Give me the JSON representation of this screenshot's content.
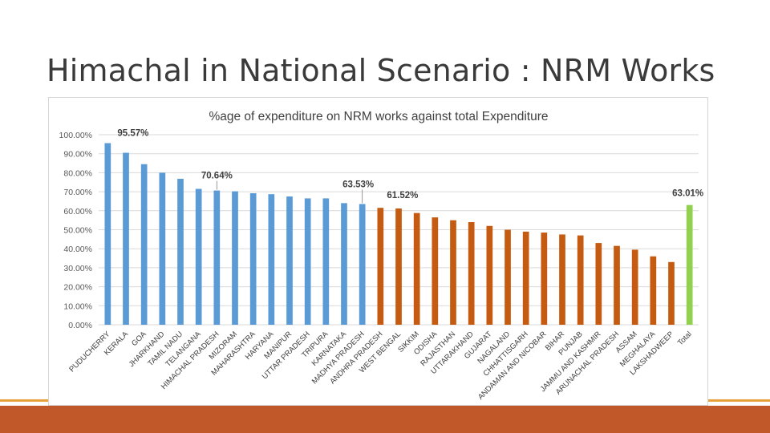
{
  "slide": {
    "title": "Himachal in National Scenario : NRM Works"
  },
  "colors": {
    "series_blue": "#5b9bd5",
    "series_orange": "#c55a11",
    "series_green": "#92d050",
    "accent_bar": "#c0582a",
    "accent_line": "#e9a23b"
  },
  "chart_data": {
    "type": "bar",
    "title": "%age of expenditure on NRM works against total Expenditure",
    "xlabel": "",
    "ylabel": "",
    "ylim": [
      0,
      100
    ],
    "yticks": [
      "0.00%",
      "10.00%",
      "20.00%",
      "30.00%",
      "40.00%",
      "50.00%",
      "60.00%",
      "70.00%",
      "80.00%",
      "90.00%",
      "100.00%"
    ],
    "grid": true,
    "legend": "none",
    "categories": [
      "PUDUCHERRY",
      "KERALA",
      "GOA",
      "JHARKHAND",
      "TAMIL NADU",
      "TELANGANA",
      "HIMACHAL PRADESH",
      "MIZORAM",
      "MAHARASHTRA",
      "HARYANA",
      "MANIPUR",
      "UTTAR PRADESH",
      "TRIPURA",
      "KARNATAKA",
      "MADHYA PRADESH",
      "ANDHRA PRADESH",
      "WEST BENGAL",
      "SIKKIM",
      "ODISHA",
      "RAJASTHAN",
      "UTTARAKHAND",
      "GUJARAT",
      "NAGALAND",
      "CHHATTISGARH",
      "ANDAMAN AND NICOBAR",
      "BIHAR",
      "PUNJAB",
      "JAMMU AND KASHMIR",
      "ARUNACHAL PRADESH",
      "ASSAM",
      "MEGHALAYA",
      "LAKSHADWEEP",
      "Total"
    ],
    "values": [
      95.57,
      90.5,
      84.5,
      80.0,
      76.8,
      71.5,
      70.64,
      70.2,
      69.2,
      68.7,
      67.5,
      66.5,
      66.5,
      64.0,
      63.53,
      61.52,
      61.2,
      58.8,
      56.5,
      55.0,
      54.0,
      52.0,
      50.0,
      49.0,
      48.5,
      47.5,
      47.0,
      43.0,
      41.5,
      39.5,
      36.0,
      33.0,
      63.01
    ],
    "colors": [
      "#5b9bd5",
      "#5b9bd5",
      "#5b9bd5",
      "#5b9bd5",
      "#5b9bd5",
      "#5b9bd5",
      "#5b9bd5",
      "#5b9bd5",
      "#5b9bd5",
      "#5b9bd5",
      "#5b9bd5",
      "#5b9bd5",
      "#5b9bd5",
      "#5b9bd5",
      "#5b9bd5",
      "#c55a11",
      "#c55a11",
      "#c55a11",
      "#c55a11",
      "#c55a11",
      "#c55a11",
      "#c55a11",
      "#c55a11",
      "#c55a11",
      "#c55a11",
      "#c55a11",
      "#c55a11",
      "#c55a11",
      "#c55a11",
      "#c55a11",
      "#c55a11",
      "#c55a11",
      "#92d050"
    ],
    "annotations": [
      {
        "index": 0,
        "text": "95.57%"
      },
      {
        "index": 6,
        "text": "70.64%"
      },
      {
        "index": 14,
        "text": "63.53%"
      },
      {
        "index": 15,
        "text": "61.52%"
      },
      {
        "index": 32,
        "text": "63.01%"
      }
    ]
  }
}
